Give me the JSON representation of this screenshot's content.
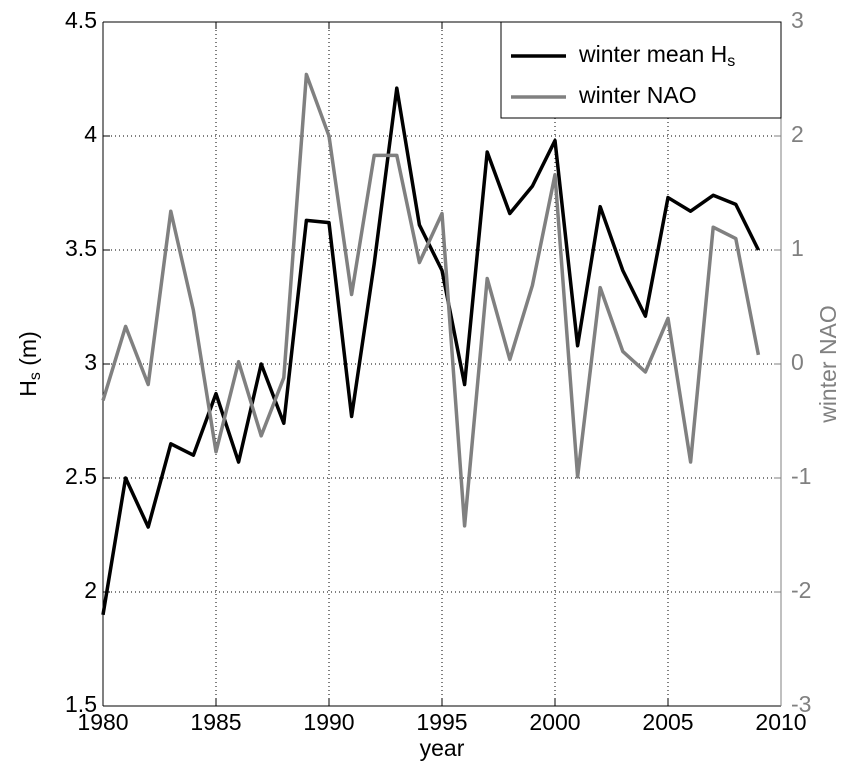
{
  "chart_data": {
    "type": "line",
    "x_label": "year",
    "y_label": "Hs (m)",
    "y2_label": "winter NAO",
    "x": [
      1980,
      1981,
      1982,
      1983,
      1984,
      1985,
      1986,
      1987,
      1988,
      1989,
      1990,
      1991,
      1992,
      1993,
      1994,
      1995,
      1996,
      1997,
      1998,
      1999,
      2000,
      2001,
      2002,
      2003,
      2004,
      2005,
      2006,
      2007,
      2008,
      2009
    ],
    "series": [
      {
        "name": "winter mean Hs",
        "color": "#000000",
        "axis": "y",
        "values": [
          1.9,
          2.5,
          2.285,
          2.65,
          2.6,
          2.87,
          2.57,
          3.0,
          2.74,
          3.63,
          3.62,
          2.77,
          3.44,
          4.21,
          3.61,
          3.41,
          2.91,
          3.93,
          3.66,
          3.78,
          3.98,
          3.08,
          3.69,
          3.41,
          3.21,
          3.73,
          3.67,
          3.74,
          3.7,
          3.5
        ]
      },
      {
        "name": "winter NAO",
        "color": "#808080",
        "axis": "y2",
        "values": [
          -0.32,
          0.33,
          -0.18,
          1.34,
          0.47,
          -0.77,
          0.02,
          -0.63,
          -0.12,
          2.54,
          2.0,
          0.61,
          1.83,
          1.83,
          0.89,
          1.32,
          -1.42,
          0.75,
          0.04,
          0.69,
          1.66,
          -0.99,
          0.67,
          0.11,
          -0.07,
          0.4,
          -0.86,
          1.2,
          1.1,
          0.08
        ]
      }
    ],
    "xlim": [
      1980,
      2010
    ],
    "xticks": [
      1980,
      1985,
      1990,
      1995,
      2000,
      2005,
      2010
    ],
    "ylim": [
      1.5,
      4.5
    ],
    "yticks": [
      1.5,
      2,
      2.5,
      3,
      3.5,
      4,
      4.5
    ],
    "y2lim": [
      -3,
      3
    ],
    "y2ticks": [
      -3,
      -2,
      -1,
      0,
      1,
      2,
      3
    ],
    "grid": true,
    "legend": "upper right"
  }
}
